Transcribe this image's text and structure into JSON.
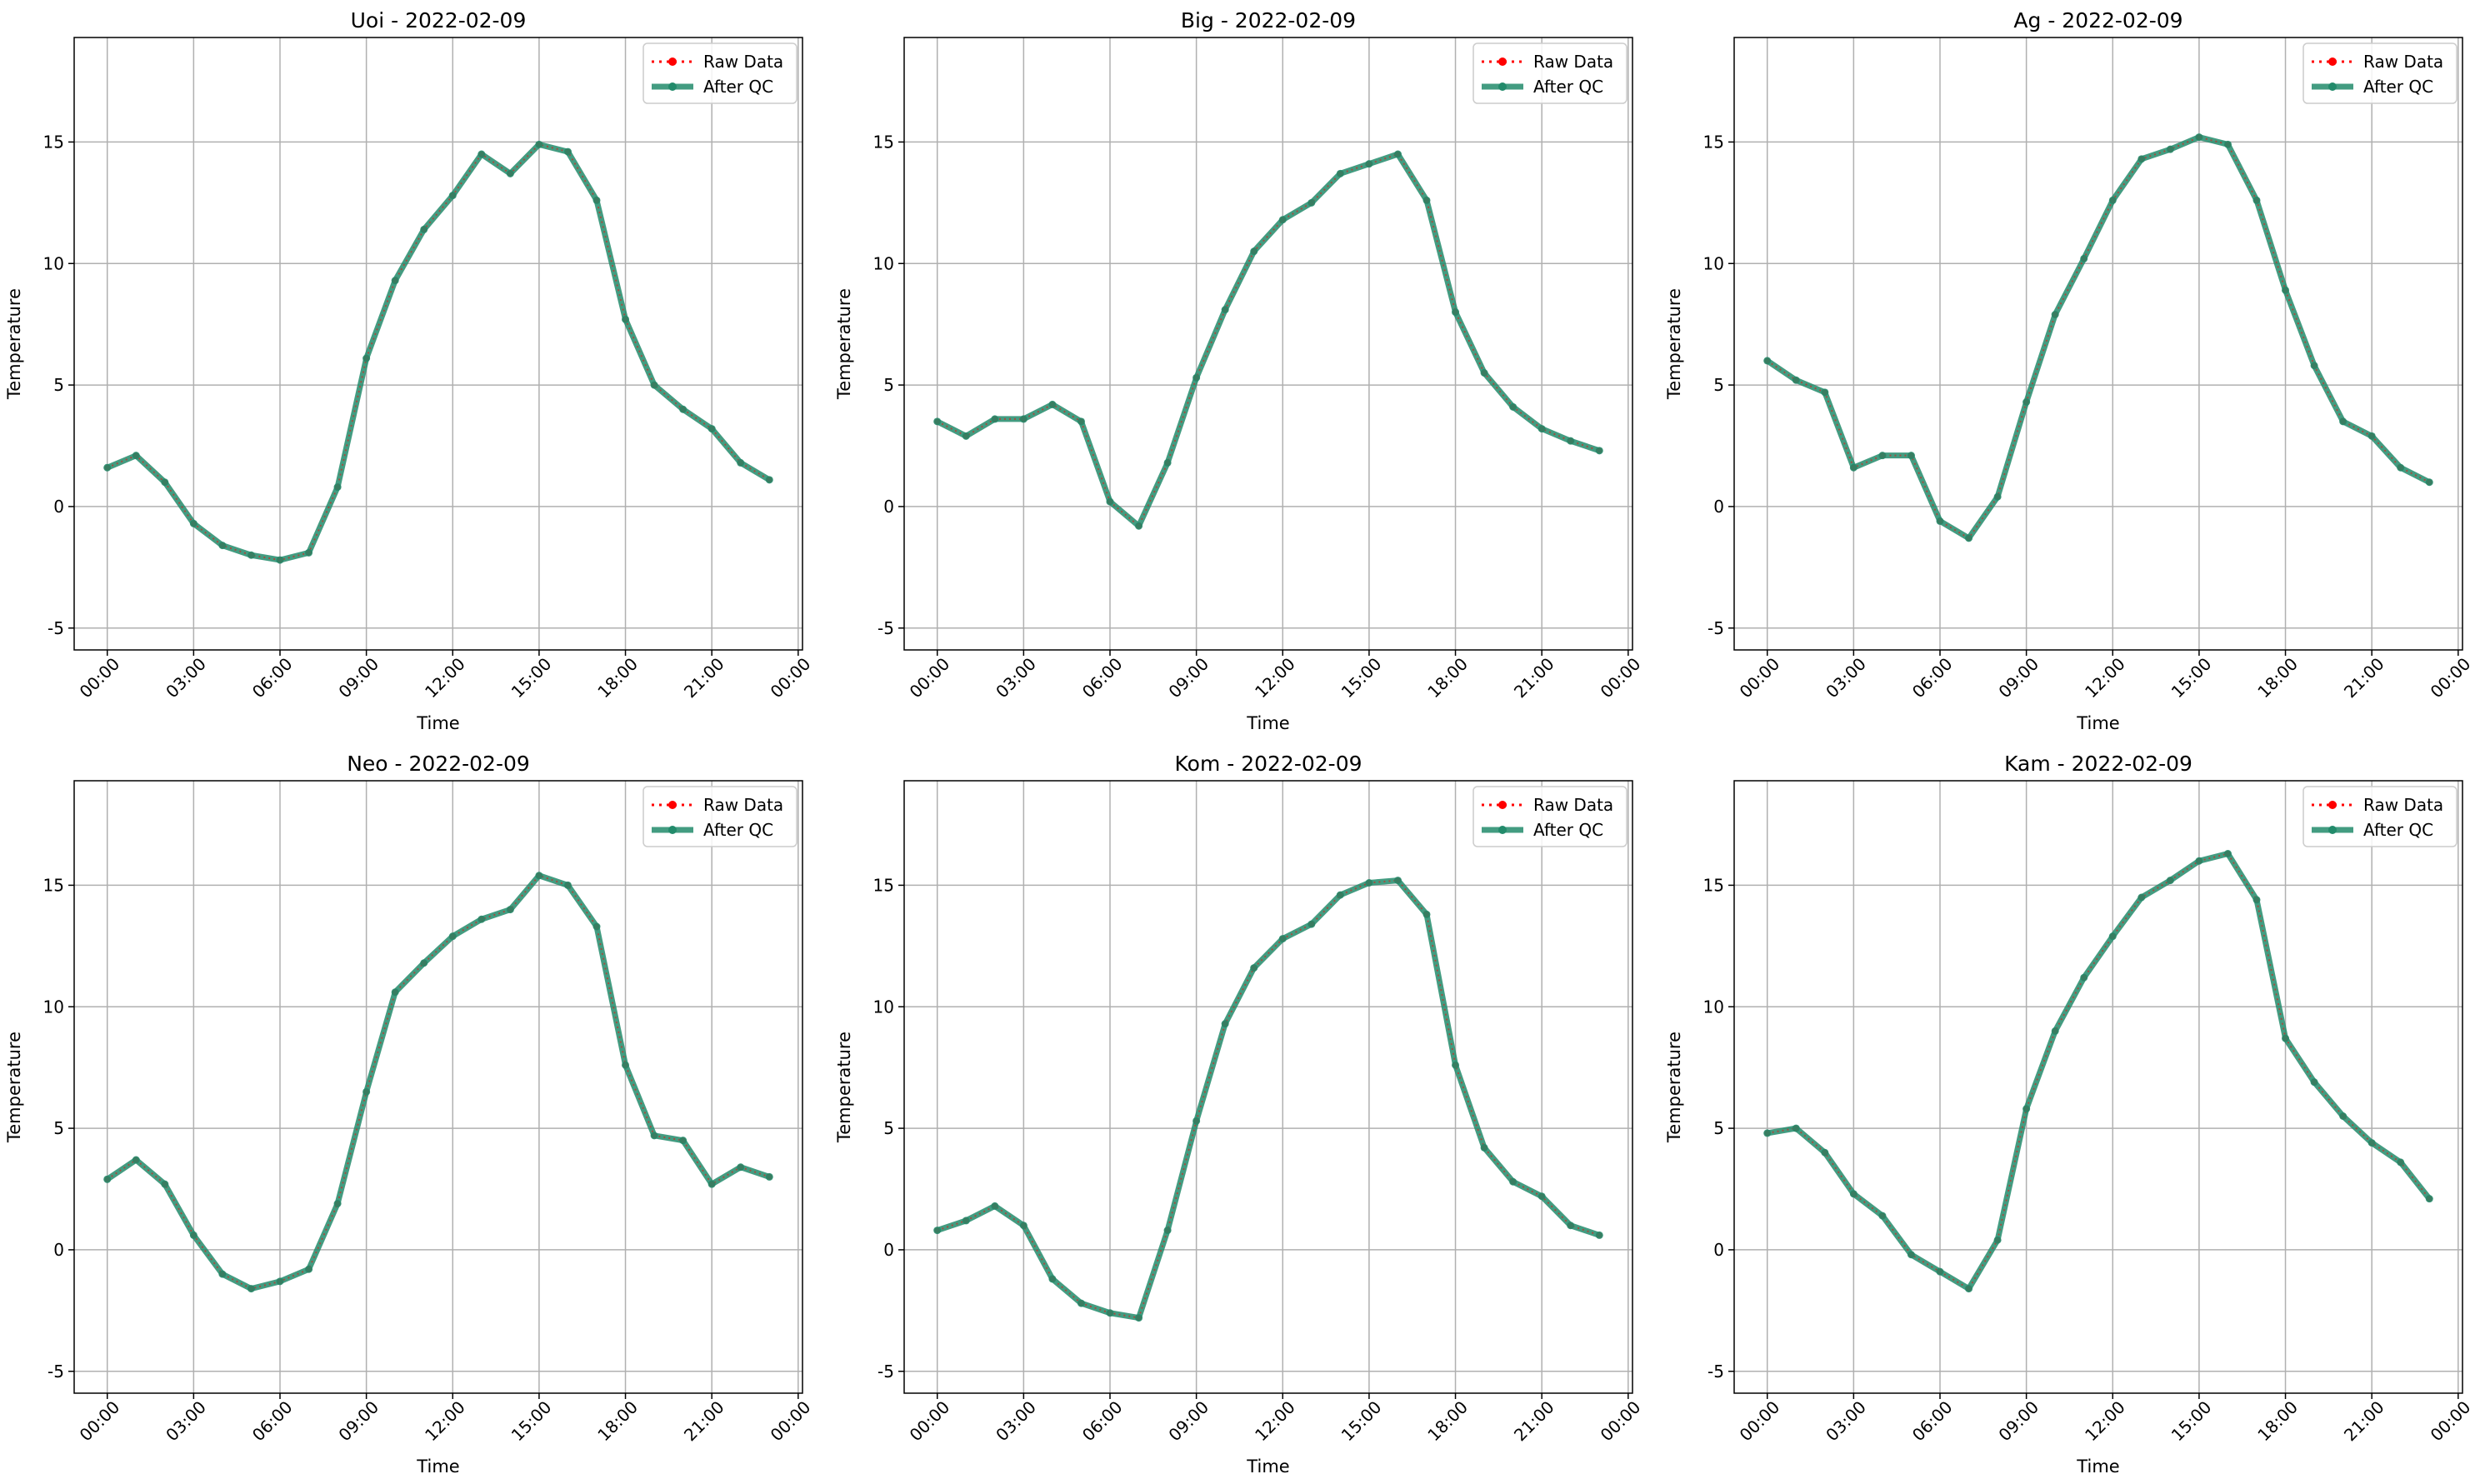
{
  "chart_data": [
    {
      "type": "line",
      "title": "Uoi - 2022-02-09",
      "xlabel": "Time",
      "ylabel": "Temperature",
      "x": [
        "00:00",
        "01:00",
        "02:00",
        "03:00",
        "04:00",
        "05:00",
        "06:00",
        "07:00",
        "08:00",
        "09:00",
        "10:00",
        "11:00",
        "12:00",
        "13:00",
        "14:00",
        "15:00",
        "16:00",
        "17:00",
        "18:00",
        "19:00",
        "20:00",
        "21:00",
        "22:00",
        "23:00"
      ],
      "series": [
        {
          "name": "Raw Data",
          "values": [
            1.6,
            2.1,
            1.0,
            -0.7,
            -1.6,
            -2.0,
            -2.2,
            -1.9,
            0.8,
            6.1,
            9.3,
            11.4,
            12.8,
            14.5,
            13.7,
            14.9,
            14.6,
            12.6,
            7.7,
            5.0,
            4.0,
            3.2,
            1.8,
            1.1
          ]
        },
        {
          "name": "After QC",
          "values": [
            1.6,
            2.1,
            1.0,
            -0.7,
            -1.6,
            -2.0,
            -2.2,
            -1.9,
            0.8,
            6.1,
            9.3,
            11.4,
            12.8,
            14.5,
            13.7,
            14.9,
            14.6,
            12.6,
            7.7,
            5.0,
            4.0,
            3.2,
            1.8,
            1.1
          ]
        }
      ]
    },
    {
      "type": "line",
      "title": "Big - 2022-02-09",
      "xlabel": "Time",
      "ylabel": "Temperature",
      "x": [
        "00:00",
        "01:00",
        "02:00",
        "03:00",
        "04:00",
        "05:00",
        "06:00",
        "07:00",
        "08:00",
        "09:00",
        "10:00",
        "11:00",
        "12:00",
        "13:00",
        "14:00",
        "15:00",
        "16:00",
        "17:00",
        "18:00",
        "19:00",
        "20:00",
        "21:00",
        "22:00",
        "23:00"
      ],
      "series": [
        {
          "name": "Raw Data",
          "values": [
            3.5,
            2.9,
            3.6,
            3.6,
            4.2,
            3.5,
            0.2,
            -0.8,
            1.8,
            5.3,
            8.1,
            10.5,
            11.8,
            12.5,
            13.7,
            14.1,
            14.5,
            12.6,
            8.0,
            5.5,
            4.1,
            3.2,
            2.7,
            2.3
          ]
        },
        {
          "name": "After QC",
          "values": [
            3.5,
            2.9,
            3.6,
            3.6,
            4.2,
            3.5,
            0.2,
            -0.8,
            1.8,
            5.3,
            8.1,
            10.5,
            11.8,
            12.5,
            13.7,
            14.1,
            14.5,
            12.6,
            8.0,
            5.5,
            4.1,
            3.2,
            2.7,
            2.3
          ]
        }
      ]
    },
    {
      "type": "line",
      "title": "Ag - 2022-02-09",
      "xlabel": "Time",
      "ylabel": "Temperature",
      "x": [
        "00:00",
        "01:00",
        "02:00",
        "03:00",
        "04:00",
        "05:00",
        "06:00",
        "07:00",
        "08:00",
        "09:00",
        "10:00",
        "11:00",
        "12:00",
        "13:00",
        "14:00",
        "15:00",
        "16:00",
        "17:00",
        "18:00",
        "19:00",
        "20:00",
        "21:00",
        "22:00",
        "23:00"
      ],
      "series": [
        {
          "name": "Raw Data",
          "values": [
            6.0,
            5.2,
            4.7,
            1.6,
            2.1,
            2.1,
            -0.6,
            -1.3,
            0.4,
            4.3,
            7.9,
            10.2,
            12.6,
            14.3,
            14.7,
            15.2,
            14.9,
            12.6,
            8.9,
            5.8,
            3.5,
            2.9,
            1.6,
            1.0
          ]
        },
        {
          "name": "After QC",
          "values": [
            6.0,
            5.2,
            4.7,
            1.6,
            2.1,
            2.1,
            -0.6,
            -1.3,
            0.4,
            4.3,
            7.9,
            10.2,
            12.6,
            14.3,
            14.7,
            15.2,
            14.9,
            12.6,
            8.9,
            5.8,
            3.5,
            2.9,
            1.6,
            1.0
          ]
        }
      ]
    },
    {
      "type": "line",
      "title": "Neo - 2022-02-09",
      "xlabel": "Time",
      "ylabel": "Temperature",
      "x": [
        "00:00",
        "01:00",
        "02:00",
        "03:00",
        "04:00",
        "05:00",
        "06:00",
        "07:00",
        "08:00",
        "09:00",
        "10:00",
        "11:00",
        "12:00",
        "13:00",
        "14:00",
        "15:00",
        "16:00",
        "17:00",
        "18:00",
        "19:00",
        "20:00",
        "21:00",
        "22:00",
        "23:00"
      ],
      "series": [
        {
          "name": "Raw Data",
          "values": [
            2.9,
            3.7,
            2.7,
            0.6,
            -1.0,
            -1.6,
            -1.3,
            -0.8,
            1.9,
            6.5,
            10.6,
            11.8,
            12.9,
            13.6,
            14.0,
            15.4,
            15.0,
            13.3,
            7.6,
            4.7,
            4.5,
            2.7,
            3.4,
            3.0
          ]
        },
        {
          "name": "After QC",
          "values": [
            2.9,
            3.7,
            2.7,
            0.6,
            -1.0,
            -1.6,
            -1.3,
            -0.8,
            1.9,
            6.5,
            10.6,
            11.8,
            12.9,
            13.6,
            14.0,
            15.4,
            15.0,
            13.3,
            7.6,
            4.7,
            4.5,
            2.7,
            3.4,
            3.0
          ]
        }
      ]
    },
    {
      "type": "line",
      "title": "Kom - 2022-02-09",
      "xlabel": "Time",
      "ylabel": "Temperature",
      "x": [
        "00:00",
        "01:00",
        "02:00",
        "03:00",
        "04:00",
        "05:00",
        "06:00",
        "07:00",
        "08:00",
        "09:00",
        "10:00",
        "11:00",
        "12:00",
        "13:00",
        "14:00",
        "15:00",
        "16:00",
        "17:00",
        "18:00",
        "19:00",
        "20:00",
        "21:00",
        "22:00",
        "23:00"
      ],
      "series": [
        {
          "name": "Raw Data",
          "values": [
            0.8,
            1.2,
            1.8,
            1.0,
            -1.2,
            -2.2,
            -2.6,
            -2.8,
            0.8,
            5.3,
            9.3,
            11.6,
            12.8,
            13.4,
            14.6,
            15.1,
            15.2,
            13.8,
            7.6,
            4.2,
            2.8,
            2.2,
            1.0,
            0.6
          ]
        },
        {
          "name": "After QC",
          "values": [
            0.8,
            1.2,
            1.8,
            1.0,
            -1.2,
            -2.2,
            -2.6,
            -2.8,
            0.8,
            5.3,
            9.3,
            11.6,
            12.8,
            13.4,
            14.6,
            15.1,
            15.2,
            13.8,
            7.6,
            4.2,
            2.8,
            2.2,
            1.0,
            0.6
          ]
        }
      ]
    },
    {
      "type": "line",
      "title": "Kam - 2022-02-09",
      "xlabel": "Time",
      "ylabel": "Temperature",
      "x": [
        "00:00",
        "01:00",
        "02:00",
        "03:00",
        "04:00",
        "05:00",
        "06:00",
        "07:00",
        "08:00",
        "09:00",
        "10:00",
        "11:00",
        "12:00",
        "13:00",
        "14:00",
        "15:00",
        "16:00",
        "17:00",
        "18:00",
        "19:00",
        "20:00",
        "21:00",
        "22:00",
        "23:00"
      ],
      "series": [
        {
          "name": "Raw Data",
          "values": [
            4.8,
            5.0,
            4.0,
            2.3,
            1.4,
            -0.2,
            -0.9,
            -1.6,
            0.4,
            5.8,
            9.0,
            11.2,
            12.9,
            14.5,
            15.2,
            16.0,
            16.3,
            14.4,
            8.7,
            6.9,
            5.5,
            4.4,
            3.6,
            2.1
          ]
        },
        {
          "name": "After QC",
          "values": [
            4.8,
            5.0,
            4.0,
            2.3,
            1.4,
            -0.2,
            -0.9,
            -1.6,
            0.4,
            5.8,
            9.0,
            11.2,
            12.9,
            14.5,
            15.2,
            16.0,
            16.3,
            14.4,
            8.7,
            6.9,
            5.5,
            4.4,
            3.6,
            2.1
          ]
        }
      ]
    }
  ],
  "axes_common": {
    "ylim": [
      -5.9,
      19.3
    ],
    "yticks": [
      -5,
      0,
      5,
      10,
      15
    ],
    "xlim_hours": [
      -1.15,
      24.15
    ],
    "xtick_hours": [
      0,
      3,
      6,
      9,
      12,
      15,
      18,
      21,
      24
    ],
    "xtick_labels": [
      "00:00",
      "03:00",
      "06:00",
      "09:00",
      "12:00",
      "15:00",
      "18:00",
      "21:00",
      "00:00"
    ],
    "xtick_rotation_deg": 45,
    "grid": true,
    "legend_position": "top-right"
  },
  "styles": {
    "raw_color": "#ff0000",
    "raw_linestyle": "dotted",
    "qc_color": "#228b6b",
    "grid_color": "#b0b0b0",
    "axis_color": "#000000"
  }
}
